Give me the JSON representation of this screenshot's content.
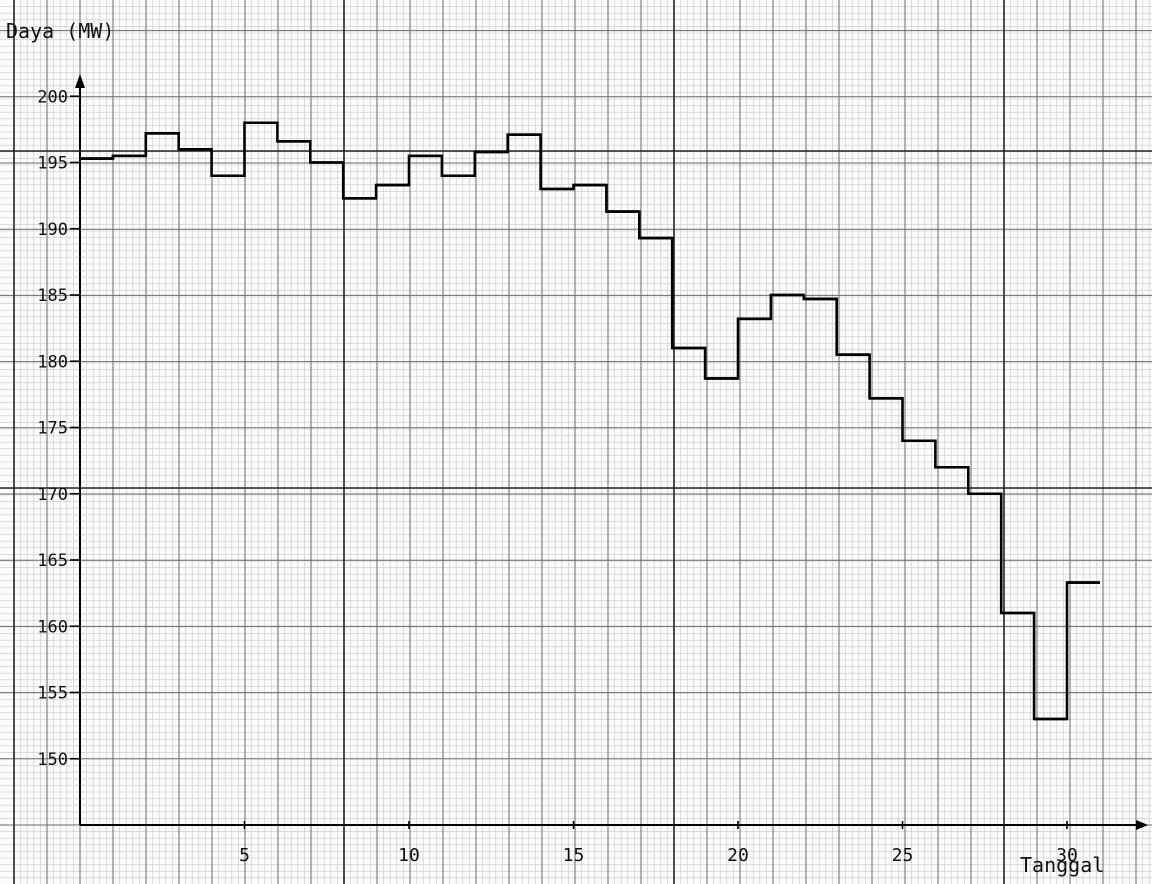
{
  "chart_data": {
    "type": "line",
    "step": true,
    "title": "",
    "ylabel": "Daya (MW)",
    "xlabel": "Tanggal",
    "xlim": [
      0,
      32
    ],
    "ylim": [
      145,
      201
    ],
    "yticks": [
      150,
      155,
      160,
      165,
      170,
      175,
      180,
      185,
      190,
      195,
      200
    ],
    "ytick_labels": [
      "150",
      "155",
      "160",
      "165",
      "170",
      "175",
      "180",
      "185",
      "190",
      "195",
      "200"
    ],
    "xticks": [
      5,
      10,
      15,
      20,
      25,
      30
    ],
    "xtick_labels": [
      "5",
      "10",
      "15",
      "20",
      "25",
      "30"
    ],
    "grid": true,
    "series": [
      {
        "days": [
          1,
          2,
          3,
          4,
          5,
          6,
          7,
          8,
          9,
          10,
          11,
          12,
          13,
          14,
          15,
          16,
          17,
          18,
          19,
          20,
          21,
          22,
          23,
          24,
          25,
          26,
          27,
          28,
          29,
          30,
          31
        ],
        "values": [
          195.3,
          195.5,
          197.2,
          196.0,
          194.0,
          198.0,
          196.6,
          195.0,
          192.3,
          193.3,
          195.5,
          194.0,
          195.8,
          197.1,
          193.0,
          193.3,
          191.3,
          189.3,
          181.0,
          178.7,
          183.2,
          185.0,
          184.7,
          180.5,
          177.2,
          174.0,
          172.0,
          170.0,
          161.0,
          153.0,
          163.3
        ]
      }
    ]
  }
}
